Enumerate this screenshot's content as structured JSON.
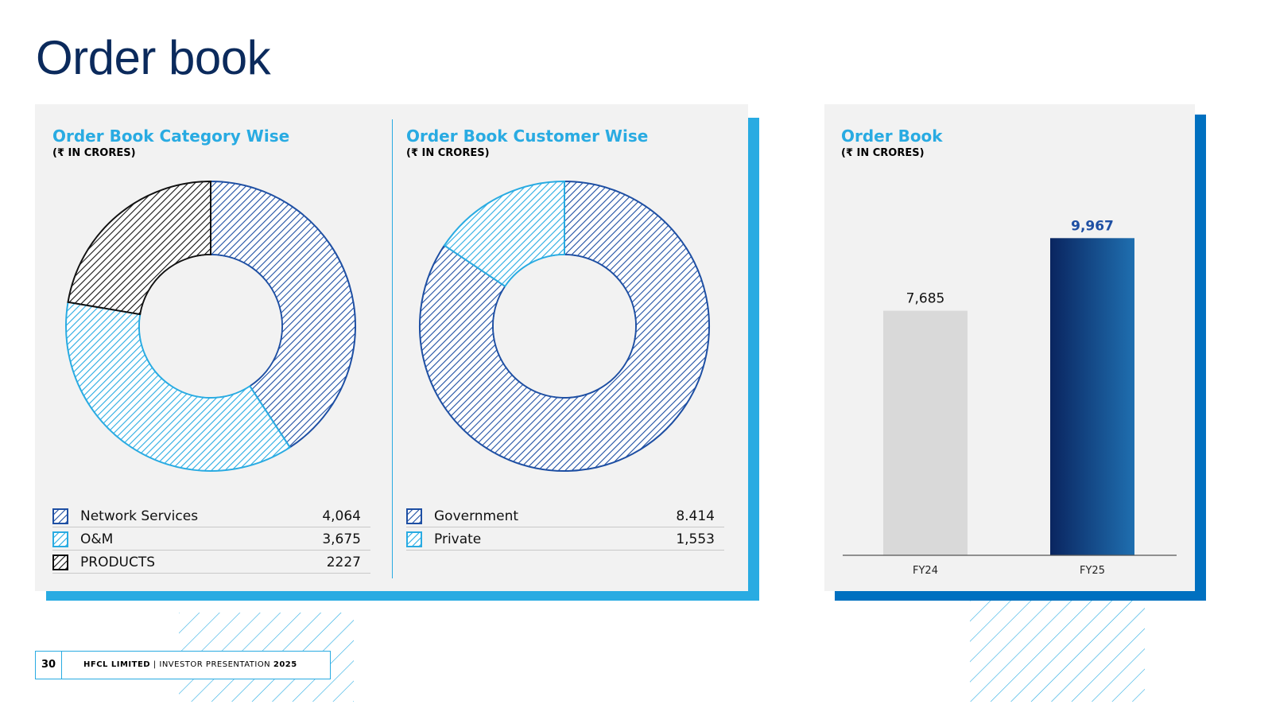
{
  "page": {
    "title": "Order book"
  },
  "colors": {
    "navy": "#1e4fa3",
    "sky": "#29abe2",
    "black": "#111111",
    "grey_bar": "#d9d9d9",
    "dark_bar": "#0a2560",
    "panel": "#f2f2f2",
    "accent_right": "#0070c0"
  },
  "chart_data": [
    {
      "type": "pie",
      "title": "Order Book Category Wise",
      "subtitle": "(₹ IN CRORES)",
      "categories": [
        "Network Services",
        "O&M",
        "PRODUCTS"
      ],
      "values": [
        4064,
        3675,
        2227
      ],
      "display_values": [
        "4,064",
        "3,675",
        "2227"
      ],
      "colors": [
        "#1e4fa3",
        "#29abe2",
        "#111111"
      ]
    },
    {
      "type": "pie",
      "title": "Order Book Customer Wise",
      "subtitle": "(₹ IN CRORES)",
      "categories": [
        "Government",
        "Private"
      ],
      "values": [
        8414,
        1553
      ],
      "display_values": [
        "8.414",
        "1,553"
      ],
      "colors": [
        "#1e4fa3",
        "#29abe2"
      ]
    },
    {
      "type": "bar",
      "title": "Order Book",
      "subtitle": "(₹ IN CRORES)",
      "categories": [
        "FY24",
        "FY25"
      ],
      "values": [
        7685,
        9967
      ],
      "display_values": [
        "7,685",
        "9,967"
      ],
      "ylim": [
        0,
        11000
      ]
    }
  ],
  "footer": {
    "page_number": "30",
    "company": "HFCL LIMITED",
    "separator": "|",
    "doc": "INVESTOR PRESENTATION",
    "year": "2025"
  }
}
